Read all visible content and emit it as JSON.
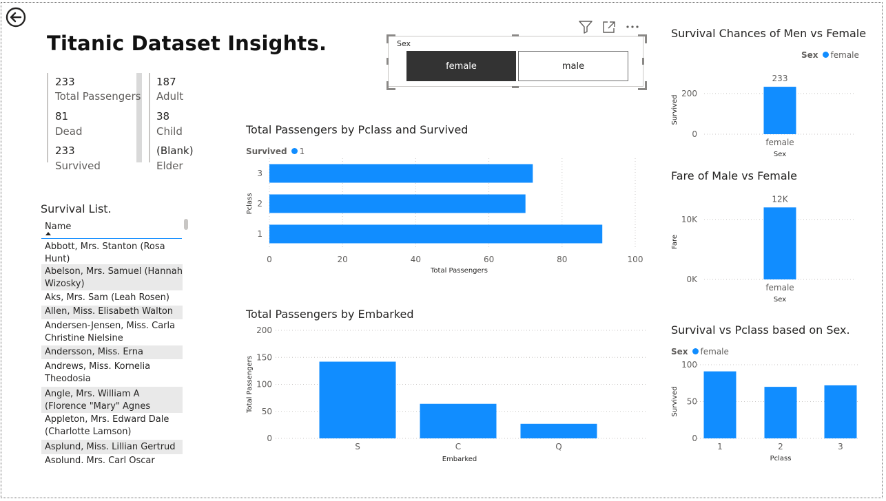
{
  "page": {
    "title": "Titanic Dataset Insights."
  },
  "kpis": {
    "left": [
      {
        "value": "233",
        "label": "Total Passengers"
      },
      {
        "value": "81",
        "label": "Dead"
      },
      {
        "value": "233",
        "label": "Survived"
      }
    ],
    "right": [
      {
        "value": "187",
        "label": "Adult"
      },
      {
        "value": "38",
        "label": "Child"
      },
      {
        "value": "(Blank)",
        "label": "Elder"
      }
    ]
  },
  "survival_list": {
    "title": "Survival List.",
    "column_header": "Name",
    "rows": [
      "Abbott, Mrs. Stanton (Rosa Hunt)",
      "",
      "Abelson, Mrs. Samuel (Hannah Wizosky)",
      "Aks, Mrs. Sam (Leah Rosen)",
      "Allen, Miss. Elisabeth Walton",
      "Andersen-Jensen, Miss. Carla Christine Nielsine",
      "Andersson, Miss. Erna Alexandra",
      "Andrews, Miss. Kornelia Theodosia",
      "Angle, Mrs. William A (Florence \"Mary\" Agnes Hughes)",
      "Appleton, Mrs. Edward Dale (Charlotte Lamson)",
      "Asplund, Miss. Lillian Gertrud",
      "Asplund, Mrs. Carl Oscar (Selma Augusta Emilia Johansson)"
    ]
  },
  "slicer": {
    "label": "Sex",
    "options": [
      "female",
      "male"
    ],
    "selected": "female"
  },
  "toolbar_icons": [
    "filter-icon",
    "focus-mode-icon",
    "more-options-icon"
  ],
  "colors": {
    "accent": "#118dff",
    "slicer_selected": "#333333"
  },
  "chart_data": [
    {
      "id": "pclass",
      "type": "bar",
      "orientation": "horizontal",
      "title": "Total Passengers by Pclass and Survived",
      "legend_title": "Survived",
      "legend": [
        "1"
      ],
      "categories": [
        "3",
        "2",
        "1"
      ],
      "values": [
        72,
        70,
        91
      ],
      "xlabel": "Total Passengers",
      "ylabel": "Pclass",
      "xlim": [
        0,
        100
      ],
      "xticks": [
        0,
        20,
        40,
        60,
        80,
        100
      ],
      "grid": true
    },
    {
      "id": "embarked",
      "type": "bar",
      "title": "Total Passengers by Embarked",
      "categories": [
        "S",
        "C",
        "Q"
      ],
      "values": [
        142,
        64,
        27
      ],
      "xlabel": "Embarked",
      "ylabel": "Total Passengers",
      "ylim": [
        0,
        200
      ],
      "yticks": [
        0,
        50,
        100,
        150,
        200
      ],
      "grid": true
    },
    {
      "id": "survival_sex",
      "type": "bar",
      "title": "Survival Chances of Men vs Female",
      "legend_title": "Sex",
      "legend": [
        "female"
      ],
      "categories": [
        "female"
      ],
      "values": [
        233
      ],
      "data_labels": [
        "233"
      ],
      "xlabel": "Sex",
      "ylabel": "Survived",
      "ylim": [
        0,
        240
      ],
      "yticks": [
        0,
        200
      ],
      "grid": true
    },
    {
      "id": "fare_sex",
      "type": "bar",
      "title": "Fare of Male vs Female",
      "categories": [
        "female"
      ],
      "values": [
        12000
      ],
      "data_labels": [
        "12K"
      ],
      "xlabel": "Sex",
      "ylabel": "Fare",
      "ylim": [
        0,
        12500
      ],
      "yticks": [
        0,
        10000
      ],
      "ytick_labels": [
        "0K",
        "10K"
      ],
      "grid": true
    },
    {
      "id": "survival_pclass",
      "type": "bar",
      "title": "Survival vs Pclass based on Sex.",
      "legend_title": "Sex",
      "legend": [
        "female"
      ],
      "categories": [
        "1",
        "2",
        "3"
      ],
      "values": [
        91,
        70,
        72
      ],
      "xlabel": "Pclass",
      "ylabel": "Survived",
      "ylim": [
        0,
        100
      ],
      "yticks": [
        0,
        50,
        100
      ],
      "grid": true
    }
  ]
}
